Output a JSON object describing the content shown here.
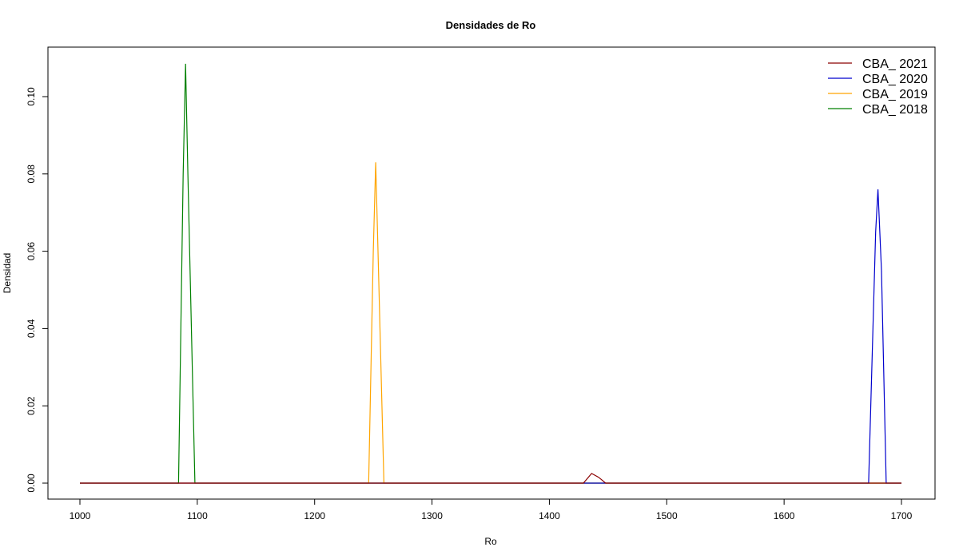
{
  "chart_data": {
    "type": "line",
    "title": "Densidades de Ro",
    "xlabel": "Ro",
    "ylabel": "Densidad",
    "xlim": [
      1000,
      1700
    ],
    "ylim": [
      0,
      0.11
    ],
    "x_ticks": [
      1000,
      1100,
      1200,
      1300,
      1400,
      1500,
      1600,
      1700
    ],
    "y_ticks": [
      "0.00",
      "0.02",
      "0.04",
      "0.06",
      "0.08",
      "0.10"
    ],
    "grid": false,
    "legend_position": "top-right",
    "series": [
      {
        "name": "CBA_ 2021",
        "color": "#8B0000",
        "x": [
          1000,
          1429,
          1436,
          1442,
          1448,
          1700
        ],
        "y": [
          0,
          0,
          0.0025,
          0.0015,
          0,
          0
        ]
      },
      {
        "name": "CBA_ 2020",
        "color": "#0000CD",
        "x": [
          1000,
          1672,
          1678,
          1680,
          1683,
          1687,
          1700
        ],
        "y": [
          0,
          0,
          0.065,
          0.076,
          0.055,
          0,
          0
        ]
      },
      {
        "name": "CBA_ 2019",
        "color": "#FFA500",
        "x": [
          1000,
          1246,
          1250,
          1252,
          1254,
          1259,
          1700
        ],
        "y": [
          0,
          0,
          0.06,
          0.083,
          0.06,
          0,
          0
        ]
      },
      {
        "name": "CBA_ 2018",
        "color": "#008000",
        "x": [
          1000,
          1084,
          1088,
          1090,
          1092,
          1098,
          1700
        ],
        "y": [
          0,
          0,
          0.08,
          0.1085,
          0.08,
          0,
          0
        ]
      }
    ]
  }
}
